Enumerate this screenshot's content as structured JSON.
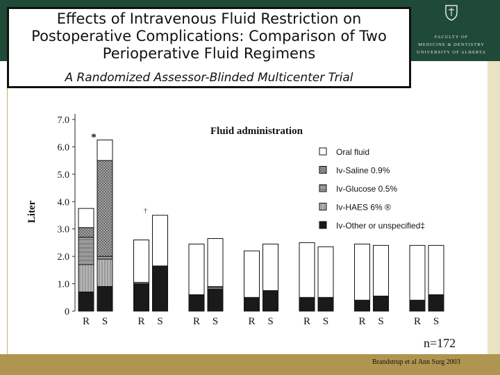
{
  "slide": {
    "title": "Effects of Intravenous Fluid Restriction on Postoperative Complications: Comparison of Two Perioperative Fluid Regimens",
    "subtitle": "A Randomized Assessor-Blinded Multicenter Trial",
    "logo": {
      "lines": [
        "FACULTY OF",
        "MEDICINE & DENTISTRY",
        "UNIVERSITY OF ALBERTA"
      ],
      "icon": "university-crest-icon"
    },
    "n_label": "n=172",
    "citation": "Brandstrup et al Ann Surg 2003",
    "colors": {
      "top_band": "#1f4a37",
      "bottom_band": "#b09550",
      "side_band": "#e9e3c4",
      "left_rule": "#c8b36a"
    }
  },
  "chart_data": {
    "type": "bar",
    "stacked": true,
    "title": "Fluid administration",
    "ylabel": "Liter",
    "xlabel": "",
    "ylim": [
      0,
      7.0
    ],
    "y_ticks": [
      "0",
      "1.0",
      "2.0",
      "3.0",
      "4.0",
      "5.0",
      "6.0",
      "7.0"
    ],
    "groups": 7,
    "categories": [
      "R",
      "S",
      "R",
      "S",
      "R",
      "S",
      "R",
      "S",
      "R",
      "S",
      "R",
      "S",
      "R",
      "S"
    ],
    "legend_position": "top-right",
    "legend": [
      "Oral fluid",
      "Iv-Saline 0.9%",
      "Iv-Glucose 0.5%",
      "Iv-HAES 6% ®",
      "Iv-Other or unspecified‡"
    ],
    "annotations": [
      {
        "text": "*",
        "category_index": 1
      },
      {
        "text": "†",
        "category_index": 3
      }
    ],
    "series": [
      {
        "name": "Iv-Other or unspecified‡",
        "values": [
          0.7,
          0.9,
          1.0,
          1.65,
          0.6,
          0.8,
          0.5,
          0.75,
          0.5,
          0.5,
          0.4,
          0.55,
          0.4,
          0.6
        ]
      },
      {
        "name": "Iv-HAES 6% ®",
        "values": [
          1.0,
          1.0,
          0.05,
          0,
          0,
          0.05,
          0,
          0,
          0,
          0,
          0,
          0,
          0,
          0
        ]
      },
      {
        "name": "Iv-Glucose 0.5%",
        "values": [
          1.0,
          0.1,
          0,
          0,
          0,
          0.05,
          0,
          0,
          0,
          0,
          0,
          0,
          0,
          0
        ]
      },
      {
        "name": "Iv-Saline 0.9%",
        "values": [
          0.35,
          3.5,
          0,
          0,
          0,
          0,
          0,
          0,
          0,
          0,
          0,
          0,
          0,
          0
        ]
      },
      {
        "name": "Oral fluid",
        "values": [
          0.7,
          0.75,
          1.55,
          1.85,
          1.85,
          1.75,
          1.7,
          1.7,
          2.0,
          1.85,
          2.05,
          1.85,
          2.0,
          1.8
        ]
      }
    ],
    "series_styles": {
      "Oral fluid": "#ffffff",
      "Iv-Saline 0.9%": "#9a9a9a",
      "Iv-Glucose 0.5%": "#8c8c8c",
      "Iv-HAES 6% ®": "#a6a6a6",
      "Iv-Other or unspecified‡": "#1a1a1a"
    }
  }
}
